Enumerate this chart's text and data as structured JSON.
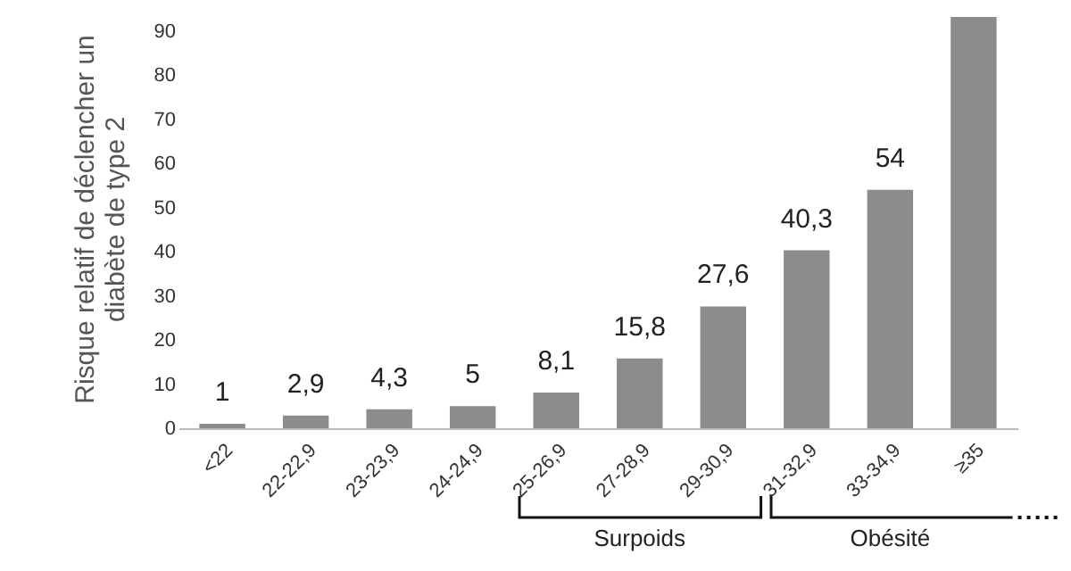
{
  "chart_data": {
    "type": "bar",
    "ylabel": "Risque relatif de déclencher un diabète de type 2",
    "categories": [
      "<22",
      "22-22,9",
      "23-23,9",
      "24-24,9",
      "25-26,9",
      "27-28,9",
      "29-30,9",
      "31-32,9",
      "33-34,9",
      "≥35"
    ],
    "values": [
      1,
      2.9,
      4.3,
      5,
      8.1,
      15.8,
      27.6,
      40.3,
      54,
      93.2
    ],
    "value_labels": [
      "1",
      "2,9",
      "4,3",
      "5",
      "8,1",
      "15,8",
      "27,6",
      "40,3",
      "54",
      null
    ],
    "color": "#8c8c8c",
    "ylim": [
      0,
      95
    ],
    "yticks": [
      0,
      10,
      20,
      30,
      40,
      50,
      60,
      70,
      80,
      90
    ],
    "grid": false,
    "annotations": [
      "Surpoids",
      "Obésité"
    ]
  }
}
